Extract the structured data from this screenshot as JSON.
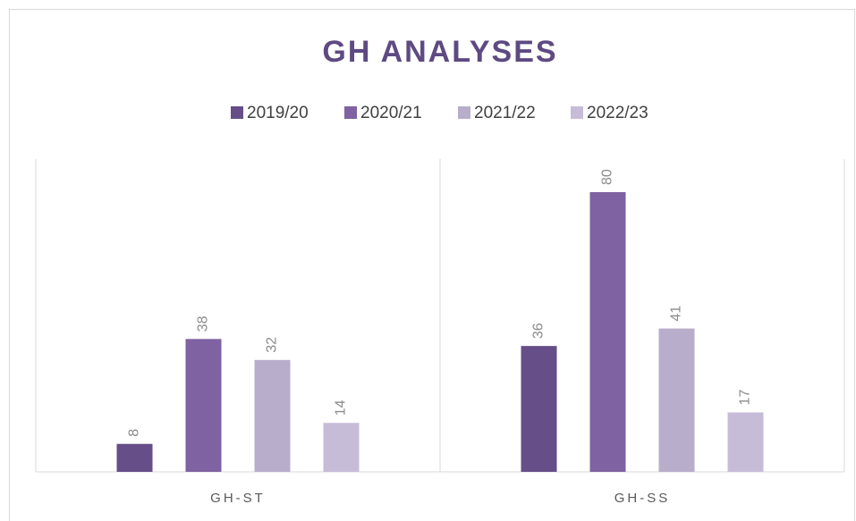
{
  "chart_data": {
    "type": "bar",
    "title": "GH ANALYSES",
    "categories": [
      "GH-ST",
      "GH-SS"
    ],
    "series": [
      {
        "name": "2019/20",
        "color": "#664e88",
        "values": [
          8,
          36
        ]
      },
      {
        "name": "2020/21",
        "color": "#7e62a1",
        "values": [
          38,
          80
        ]
      },
      {
        "name": "2021/22",
        "color": "#b8aecb",
        "values": [
          32,
          41
        ]
      },
      {
        "name": "2022/23",
        "color": "#c7bcd8",
        "values": [
          14,
          17
        ]
      }
    ],
    "legend": "top"
  }
}
